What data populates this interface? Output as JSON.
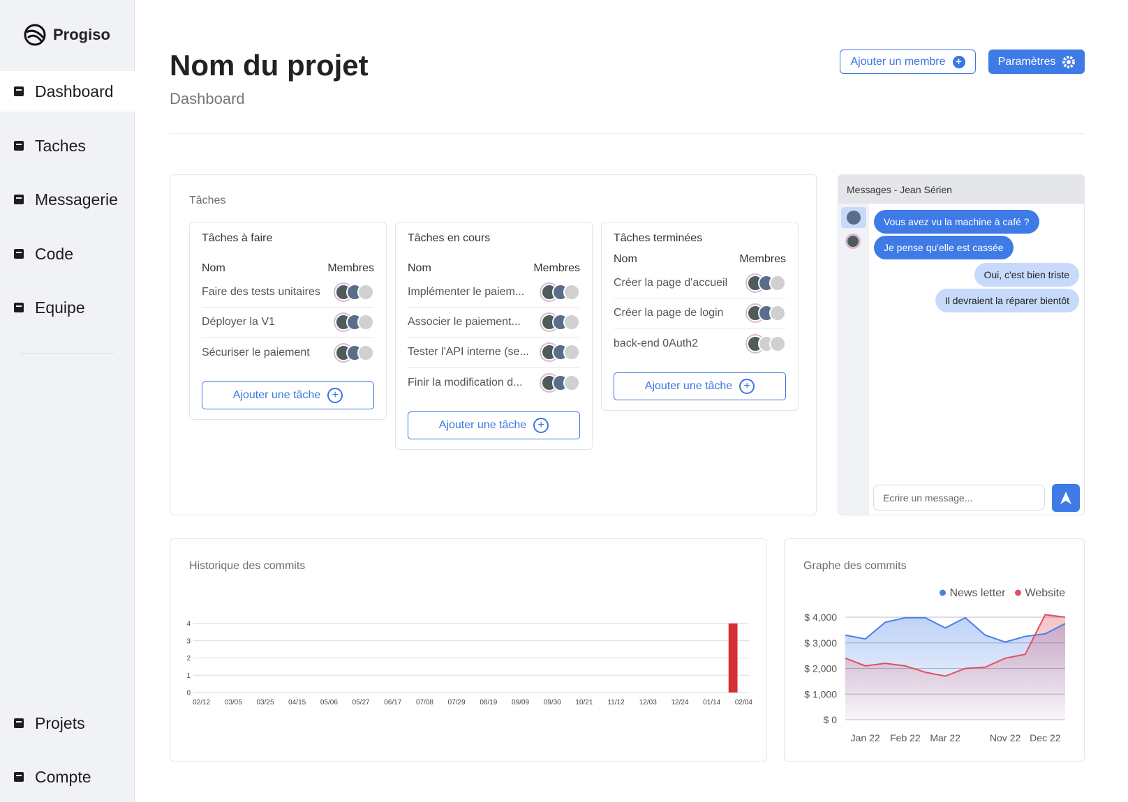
{
  "brand": "Progiso",
  "nav": [
    "Dashboard",
    "Taches",
    "Messagerie",
    "Code",
    "Equipe"
  ],
  "nav_bottom": [
    "Projets",
    "Compte"
  ],
  "header": {
    "title": "Nom du projet",
    "subtitle": "Dashboard",
    "add_member": "Ajouter un membre",
    "settings": "Paramètres"
  },
  "tasks": {
    "title": "Tâches",
    "columns": [
      {
        "title": "Tâches à faire",
        "name_header": "Nom",
        "members_header": "Membres",
        "items": [
          "Faire des tests unitaires",
          "Déployer la V1",
          "Sécuriser le paiement"
        ],
        "button": "Ajouter une tâche"
      },
      {
        "title": "Tâches en cours",
        "name_header": "Nom",
        "members_header": "Membres",
        "items": [
          "Implémenter le paiem...",
          "Associer le paiement...",
          "Tester l'API interne (se...",
          "Finir la modification d..."
        ],
        "button": "Ajouter une tâche"
      },
      {
        "title": "Tâches terminées",
        "name_header": "Nom",
        "members_header": "Membres",
        "items": [
          "Créer la page d'accueil",
          "Créer la page de login",
          "back-end 0Auth2"
        ],
        "button": "Ajouter une tâche"
      }
    ]
  },
  "messages": {
    "title": "Messages - Jean Sérien",
    "items": [
      {
        "side": "in",
        "text": "Vous avez vu la machine à café ?"
      },
      {
        "side": "in",
        "text": "Je pense qu'elle est cassée"
      },
      {
        "side": "out",
        "text": "Oui, c'est bien triste"
      },
      {
        "side": "out",
        "text": "Il devraient la réparer bientôt"
      }
    ],
    "placeholder": "Ecrire un message..."
  },
  "chart_data": [
    {
      "type": "bar",
      "title": "Historique des commits",
      "categories": [
        "02/12",
        null,
        null,
        "03/05",
        null,
        null,
        "03/25",
        null,
        null,
        "04/15",
        null,
        null,
        "05/06",
        null,
        null,
        "05/27",
        null,
        null,
        "06/17",
        null,
        null,
        "07/08",
        null,
        null,
        "07/29",
        null,
        null,
        "08/19",
        null,
        null,
        "09/09",
        null,
        null,
        "09/30",
        null,
        null,
        "10/21",
        null,
        null,
        "11/12",
        null,
        null,
        "12/03",
        null,
        null,
        "12/24",
        null,
        null,
        "01/14",
        null,
        null,
        "02/04"
      ],
      "values": [
        0,
        0,
        0,
        0,
        0,
        0,
        0,
        0,
        0,
        0,
        0,
        0,
        0,
        0,
        0,
        0,
        0,
        0,
        0,
        0,
        0,
        0,
        0,
        0,
        0,
        0,
        0,
        0,
        0,
        0,
        0,
        0,
        0,
        0,
        0,
        0,
        0,
        0,
        0,
        0,
        0,
        0,
        0,
        0,
        0,
        0,
        0,
        0,
        0,
        0,
        4,
        0
      ],
      "color": "#d32f35",
      "ylim": [
        0,
        4
      ],
      "yticks": [
        0,
        1,
        2,
        3,
        4
      ],
      "grid": true
    },
    {
      "type": "line",
      "title": "Graphe des commits",
      "categories": [
        null,
        "Jan 22",
        null,
        "Feb 22",
        null,
        "Mar 22",
        null,
        null,
        "Nov 22",
        null,
        "Dec 22",
        null
      ],
      "series": [
        {
          "name": "News letter",
          "color": "#4a7fe8",
          "values": [
            3300,
            3150,
            3800,
            3980,
            3980,
            3580,
            3980,
            3300,
            3030,
            3250,
            3350,
            3750
          ]
        },
        {
          "name": "Website",
          "color": "#e0505e",
          "values": [
            2400,
            2100,
            2200,
            2100,
            1850,
            1700,
            2000,
            2050,
            2400,
            2550,
            4100,
            4000
          ]
        }
      ],
      "ylim": [
        0,
        4000
      ],
      "yticks": [
        {
          "value": 0,
          "label": "$ 0"
        },
        {
          "value": 1000,
          "label": "$ 1,000"
        },
        {
          "value": 2000,
          "label": "$ 2,000"
        },
        {
          "value": 3000,
          "label": "$ 3,000"
        },
        {
          "value": 4000,
          "label": "$ 4,000"
        }
      ],
      "grid": true,
      "legend": "top-right"
    }
  ]
}
